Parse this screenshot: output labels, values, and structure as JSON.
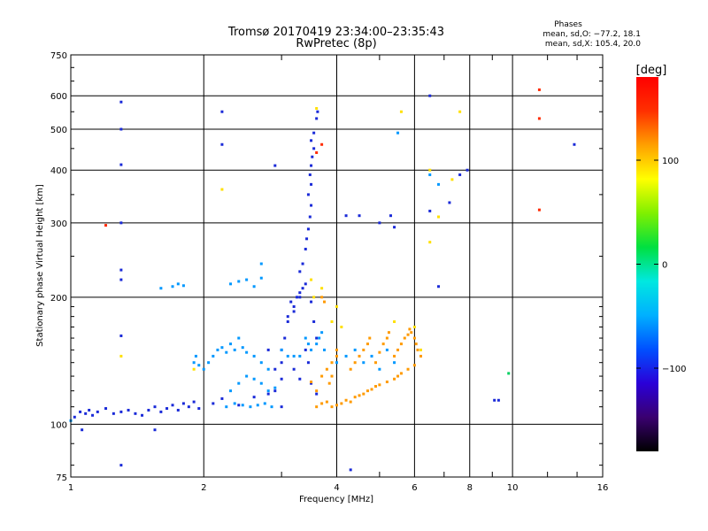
{
  "chart_data": {
    "type": "scatter",
    "title": "Tromsø 20170419 23:34:00–23:35:43",
    "subtitle": "RwPretec (8p)",
    "stats_heading": "Phases",
    "stats_line1": "mean, sd,O: −77.2, 18.1",
    "stats_line2": "mean, sd,X: 105.4, 20.0",
    "xlabel": "Frequency [MHz]",
    "ylabel": "Stationary phase Virtual Height [km]",
    "x_scale": "log",
    "y_scale": "log",
    "xlim": [
      1,
      16
    ],
    "ylim": [
      75,
      750
    ],
    "grid": true,
    "x_ticks": [
      1,
      2,
      4,
      6,
      8,
      10,
      16
    ],
    "x_gridlines": [
      2,
      4,
      6,
      8,
      10
    ],
    "x_minor_ticks": [
      3,
      5,
      7,
      9,
      12,
      14
    ],
    "y_ticks": [
      75,
      100,
      200,
      300,
      400,
      500,
      600,
      750
    ],
    "colorbar": {
      "label": "[deg]",
      "range": [
        -180,
        180
      ],
      "ticks": [
        100,
        0,
        -100
      ],
      "colors": [
        "#000000",
        "#3a0070",
        "#2a00d8",
        "#0050ff",
        "#00b0ff",
        "#00e8e0",
        "#00e040",
        "#80f000",
        "#ffff00",
        "#ffa000",
        "#ff3000",
        "#ff0000"
      ]
    },
    "series": [
      {
        "phase_deg": -85,
        "color": "#1a2ad8",
        "points": [
          [
            1.02,
            104
          ],
          [
            1.05,
            107
          ],
          [
            1.08,
            106
          ],
          [
            1.1,
            108
          ],
          [
            1.12,
            105
          ],
          [
            1.15,
            107
          ],
          [
            1.2,
            109
          ],
          [
            1.25,
            106
          ],
          [
            1.3,
            107
          ],
          [
            1.35,
            108
          ],
          [
            1.4,
            106
          ],
          [
            1.45,
            105
          ],
          [
            1.5,
            108
          ],
          [
            1.55,
            110
          ],
          [
            1.6,
            107
          ],
          [
            1.65,
            109
          ],
          [
            1.7,
            111
          ],
          [
            1.75,
            108
          ],
          [
            1.8,
            112
          ],
          [
            1.85,
            110
          ],
          [
            1.9,
            113
          ],
          [
            1.95,
            109
          ],
          [
            2.1,
            112
          ],
          [
            2.2,
            115
          ],
          [
            2.4,
            111
          ],
          [
            2.6,
            116
          ],
          [
            2.8,
            118
          ],
          [
            2.9,
            120
          ],
          [
            3.0,
            128
          ],
          [
            3.0,
            140
          ],
          [
            3.05,
            160
          ],
          [
            3.1,
            175
          ],
          [
            3.2,
            185
          ],
          [
            3.15,
            195
          ],
          [
            3.25,
            200
          ],
          [
            3.3,
            205
          ],
          [
            3.35,
            210
          ],
          [
            3.4,
            215
          ],
          [
            3.3,
            230
          ],
          [
            3.35,
            240
          ],
          [
            3.4,
            260
          ],
          [
            3.42,
            275
          ],
          [
            3.45,
            290
          ],
          [
            3.48,
            310
          ],
          [
            3.5,
            330
          ],
          [
            3.45,
            350
          ],
          [
            3.5,
            370
          ],
          [
            3.48,
            390
          ],
          [
            3.5,
            410
          ],
          [
            3.52,
            430
          ],
          [
            3.55,
            450
          ],
          [
            3.5,
            470
          ],
          [
            3.55,
            490
          ],
          [
            3.6,
            530
          ],
          [
            3.62,
            550
          ],
          [
            3.3,
            200
          ],
          [
            3.2,
            190
          ],
          [
            3.1,
            180
          ],
          [
            3.0,
            150
          ],
          [
            2.8,
            150
          ],
          [
            3.5,
            195
          ],
          [
            3.55,
            175
          ],
          [
            3.6,
            160
          ],
          [
            3.4,
            150
          ],
          [
            3.45,
            140
          ],
          [
            3.2,
            135
          ],
          [
            3.3,
            128
          ],
          [
            3.5,
            125
          ],
          [
            3.6,
            118
          ],
          [
            2.9,
            135
          ],
          [
            3.0,
            110
          ],
          [
            1.3,
            580
          ],
          [
            1.3,
            500
          ],
          [
            1.3,
            412
          ],
          [
            1.3,
            300
          ],
          [
            1.3,
            232
          ],
          [
            1.3,
            220
          ],
          [
            1.3,
            162
          ],
          [
            1.3,
            80
          ],
          [
            1.06,
            97
          ],
          [
            1.55,
            97
          ],
          [
            2.2,
            550
          ],
          [
            2.2,
            460
          ],
          [
            2.9,
            410
          ],
          [
            4.2,
            312
          ],
          [
            4.5,
            312
          ],
          [
            5.0,
            300
          ],
          [
            5.3,
            312
          ],
          [
            5.4,
            293
          ],
          [
            6.5,
            600
          ],
          [
            6.5,
            320
          ],
          [
            6.8,
            212
          ],
          [
            7.2,
            335
          ],
          [
            7.6,
            390
          ],
          [
            7.9,
            400
          ],
          [
            9.1,
            114
          ],
          [
            9.3,
            114
          ],
          [
            13.8,
            460
          ],
          [
            4.3,
            78
          ]
        ]
      },
      {
        "phase_deg": -45,
        "color": "#0098ff",
        "points": [
          [
            1.6,
            210
          ],
          [
            1.7,
            212
          ],
          [
            1.75,
            215
          ],
          [
            1.8,
            213
          ],
          [
            1.9,
            140
          ],
          [
            1.92,
            145
          ],
          [
            1.95,
            138
          ],
          [
            2.0,
            135
          ],
          [
            2.05,
            140
          ],
          [
            2.1,
            145
          ],
          [
            2.15,
            150
          ],
          [
            2.2,
            152
          ],
          [
            2.25,
            148
          ],
          [
            2.3,
            155
          ],
          [
            2.35,
            150
          ],
          [
            2.4,
            160
          ],
          [
            2.45,
            152
          ],
          [
            2.5,
            148
          ],
          [
            2.6,
            145
          ],
          [
            2.7,
            140
          ],
          [
            2.8,
            135
          ],
          [
            2.5,
            130
          ],
          [
            2.6,
            128
          ],
          [
            2.7,
            125
          ],
          [
            2.8,
            120
          ],
          [
            2.9,
            122
          ],
          [
            2.4,
            125
          ],
          [
            2.3,
            120
          ],
          [
            2.25,
            110
          ],
          [
            2.35,
            112
          ],
          [
            2.45,
            111
          ],
          [
            2.55,
            110
          ],
          [
            2.65,
            111
          ],
          [
            2.75,
            112
          ],
          [
            2.85,
            110
          ],
          [
            2.3,
            215
          ],
          [
            2.4,
            218
          ],
          [
            2.5,
            220
          ],
          [
            2.6,
            212
          ],
          [
            2.7,
            222
          ],
          [
            3.0,
            150
          ],
          [
            3.1,
            145
          ],
          [
            3.2,
            145
          ],
          [
            3.3,
            145
          ],
          [
            3.4,
            160
          ],
          [
            3.45,
            155
          ],
          [
            3.5,
            150
          ],
          [
            3.6,
            155
          ],
          [
            3.65,
            160
          ],
          [
            3.7,
            165
          ],
          [
            3.75,
            150
          ],
          [
            4.0,
            140
          ],
          [
            4.2,
            145
          ],
          [
            4.4,
            150
          ],
          [
            4.6,
            140
          ],
          [
            4.8,
            145
          ],
          [
            5.0,
            135
          ],
          [
            5.2,
            150
          ],
          [
            5.4,
            140
          ],
          [
            5.5,
            490
          ],
          [
            6.5,
            390
          ],
          [
            6.8,
            370
          ],
          [
            2.7,
            240
          ],
          [
            1.0,
            102
          ]
        ]
      },
      {
        "phase_deg": 120,
        "color": "#ff9a00",
        "points": [
          [
            3.6,
            110
          ],
          [
            3.7,
            112
          ],
          [
            3.8,
            113
          ],
          [
            3.9,
            110
          ],
          [
            4.0,
            111
          ],
          [
            4.1,
            112
          ],
          [
            4.2,
            114
          ],
          [
            4.3,
            113
          ],
          [
            4.4,
            116
          ],
          [
            4.5,
            117
          ],
          [
            4.6,
            118
          ],
          [
            4.7,
            120
          ],
          [
            4.8,
            121
          ],
          [
            4.9,
            123
          ],
          [
            5.0,
            124
          ],
          [
            5.2,
            126
          ],
          [
            5.4,
            128
          ],
          [
            5.5,
            130
          ],
          [
            5.6,
            132
          ],
          [
            5.8,
            135
          ],
          [
            6.0,
            138
          ],
          [
            3.7,
            130
          ],
          [
            3.8,
            135
          ],
          [
            3.9,
            140
          ],
          [
            4.0,
            145
          ],
          [
            4.0,
            150
          ],
          [
            4.3,
            135
          ],
          [
            4.4,
            140
          ],
          [
            4.5,
            145
          ],
          [
            4.6,
            150
          ],
          [
            4.7,
            155
          ],
          [
            4.75,
            160
          ],
          [
            4.9,
            140
          ],
          [
            5.0,
            148
          ],
          [
            5.1,
            155
          ],
          [
            5.2,
            160
          ],
          [
            5.25,
            165
          ],
          [
            5.4,
            145
          ],
          [
            5.5,
            150
          ],
          [
            5.6,
            155
          ],
          [
            5.7,
            160
          ],
          [
            5.8,
            163
          ],
          [
            5.85,
            168
          ],
          [
            5.9,
            165
          ],
          [
            6.0,
            160
          ],
          [
            6.05,
            155
          ],
          [
            3.5,
            126
          ],
          [
            3.6,
            120
          ],
          [
            3.7,
            200
          ],
          [
            3.75,
            195
          ],
          [
            3.9,
            130
          ],
          [
            3.85,
            125
          ],
          [
            6.1,
            150
          ],
          [
            6.2,
            145
          ]
        ]
      },
      {
        "phase_deg": 95,
        "color": "#ffe000",
        "points": [
          [
            3.6,
            560
          ],
          [
            3.55,
            200
          ],
          [
            3.5,
            220
          ],
          [
            3.7,
            210
          ],
          [
            4.0,
            190
          ],
          [
            4.1,
            170
          ],
          [
            3.9,
            175
          ],
          [
            5.4,
            175
          ],
          [
            6.0,
            170
          ],
          [
            6.5,
            400
          ],
          [
            6.5,
            270
          ],
          [
            6.8,
            310
          ],
          [
            7.3,
            380
          ],
          [
            7.6,
            550
          ],
          [
            5.6,
            550
          ],
          [
            6.2,
            150
          ],
          [
            2.2,
            360
          ],
          [
            1.3,
            145
          ],
          [
            1.9,
            135
          ]
        ]
      },
      {
        "phase_deg": 160,
        "color": "#ff2a00",
        "points": [
          [
            1.2,
            296
          ],
          [
            11.5,
            620
          ],
          [
            11.5,
            530
          ],
          [
            11.5,
            322
          ],
          [
            3.7,
            460
          ],
          [
            3.6,
            440
          ]
        ]
      },
      {
        "phase_deg": 30,
        "color": "#00d060",
        "points": [
          [
            9.8,
            132
          ]
        ]
      }
    ]
  }
}
